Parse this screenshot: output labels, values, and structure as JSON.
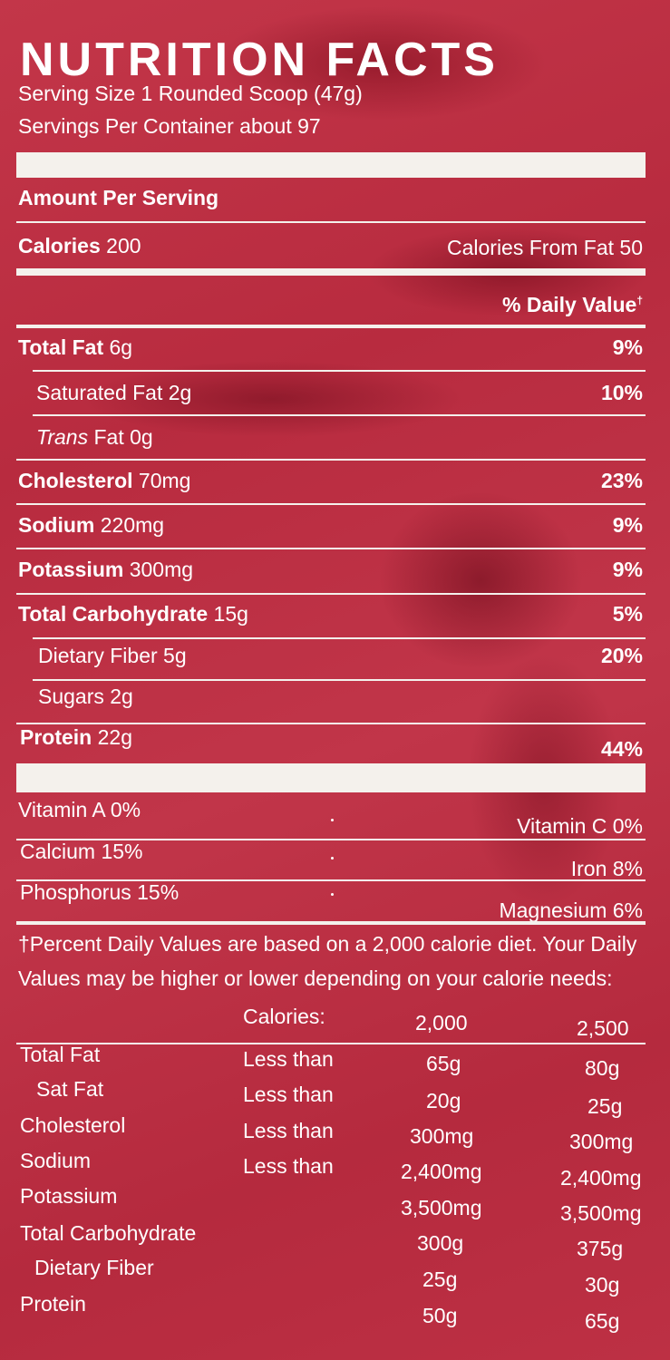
{
  "title": "NUTRITION FACTS",
  "serving_size": "Serving Size 1 Rounded Scoop (47g)",
  "servings_per_container": "Servings Per Container about 97",
  "amount_per_serving": "Amount Per Serving",
  "calories": {
    "label": "Calories",
    "value": "200"
  },
  "calories_from_fat": "Calories From Fat 50",
  "daily_value_header": "% Daily Value",
  "daily_value_mark": "†",
  "nutrients": [
    {
      "name": "Total Fat",
      "amount": "6g",
      "dv": "9%"
    },
    {
      "name": "Saturated Fat",
      "amount": "2g",
      "dv": "10%"
    },
    {
      "name": "Trans",
      "name_rest": "Fat",
      "amount": "0g",
      "dv": ""
    },
    {
      "name": "Cholesterol",
      "amount": "70mg",
      "dv": "23%"
    },
    {
      "name": "Sodium",
      "amount": "220mg",
      "dv": "9%"
    },
    {
      "name": "Potassium",
      "amount": "300mg",
      "dv": "9%"
    },
    {
      "name": "Total Carbohydrate",
      "amount": "15g",
      "dv": "5%"
    },
    {
      "name": "Dietary Fiber",
      "amount": "5g",
      "dv": "20%"
    },
    {
      "name": "Sugars",
      "amount": "2g",
      "dv": ""
    },
    {
      "name": "Protein",
      "amount": "22g",
      "dv": "44%"
    }
  ],
  "vitamins": [
    {
      "left": "Vitamin A  0%",
      "right": "Vitamin C  0%"
    },
    {
      "left": "Calcium  15%",
      "right": "Iron  8%"
    },
    {
      "left": "Phosphorus  15%",
      "right": "Magnesium  6%"
    }
  ],
  "footnote": [
    "†Percent Daily Values are based on a 2,000 calorie diet. Your Daily",
    "Values may be higher or lower depending on your calorie needs:"
  ],
  "dv_table": {
    "header": {
      "label": "Calories:",
      "col1": "2,000",
      "col2": "2,500"
    },
    "rows": [
      {
        "name": "Total Fat",
        "qualifier": "Less than",
        "col1": "65g",
        "col2": "80g"
      },
      {
        "name": "Sat Fat",
        "qualifier": "Less than",
        "col1": "20g",
        "col2": "25g"
      },
      {
        "name": "Cholesterol",
        "qualifier": "Less than",
        "col1": "300mg",
        "col2": "300mg"
      },
      {
        "name": "Sodium",
        "qualifier": "Less than",
        "col1": "2,400mg",
        "col2": "2,400mg"
      },
      {
        "name": "Potassium",
        "qualifier": "",
        "col1": "3,500mg",
        "col2": "3,500mg"
      },
      {
        "name": "Total Carbohydrate",
        "qualifier": "",
        "col1": "300g",
        "col2": "375g"
      },
      {
        "name": "Dietary Fiber",
        "qualifier": "",
        "col1": "25g",
        "col2": "30g"
      },
      {
        "name": "Protein",
        "qualifier": "",
        "col1": "50g",
        "col2": "65g"
      }
    ]
  },
  "colors": {
    "background": "#bd3044",
    "text": "#ffffff",
    "rules": "#f4f1ec"
  }
}
